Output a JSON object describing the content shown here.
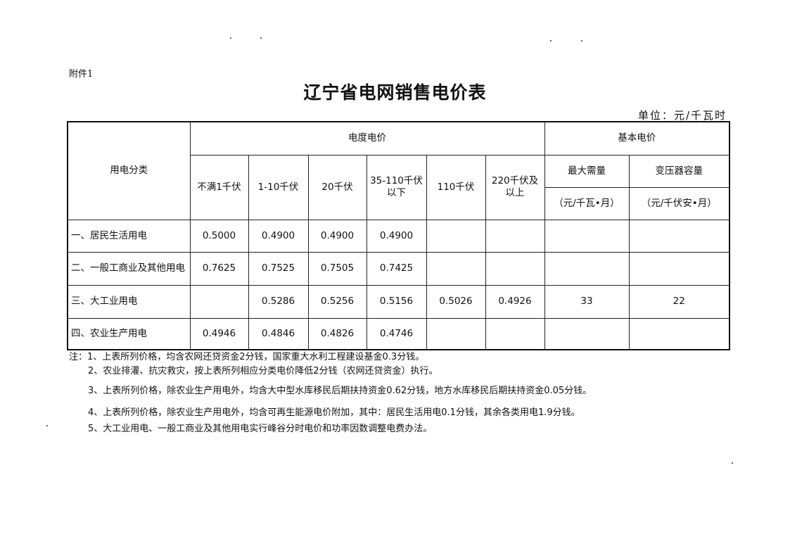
{
  "attachment_label": "附件1",
  "title": "辽宁省电网销售电价表",
  "unit": "单位：元/千瓦时",
  "table": {
    "category_header": "用电分类",
    "energy_price_header": "电度电价",
    "basic_price_header": "基本电价",
    "voltage_columns": [
      "不满1千伏",
      "1-10千伏",
      "20千伏",
      "35-110千伏以下",
      "110千伏",
      "220千伏及以上"
    ],
    "basic_columns": [
      {
        "label": "最大需量",
        "unit": "（元/千瓦•月）"
      },
      {
        "label": "变压器容量",
        "unit": "（元/千伏安•月）"
      }
    ],
    "rows": [
      {
        "category": "一、居民生活用电",
        "values": [
          "0.5000",
          "0.4900",
          "0.4900",
          "0.4900",
          "",
          "",
          "",
          ""
        ]
      },
      {
        "category": "二、一般工商业及其他用电",
        "values": [
          "0.7625",
          "0.7525",
          "0.7505",
          "0.7425",
          "",
          "",
          "",
          ""
        ]
      },
      {
        "category": "三、大工业用电",
        "values": [
          "",
          "0.5286",
          "0.5256",
          "0.5156",
          "0.5026",
          "0.4926",
          "33",
          "22"
        ]
      },
      {
        "category": "四、农业生产用电",
        "values": [
          "0.4946",
          "0.4846",
          "0.4826",
          "0.4746",
          "",
          "",
          "",
          ""
        ]
      }
    ]
  },
  "notes": [
    "注：1、上表所列价格，均含农网还贷资金2分钱，国家重大水利工程建设基金0.3分钱。",
    "2、农业排灌、抗灾救灾，按上表所列相应分类电价降低2分钱（农网还贷资金）执行。",
    "3、上表所列价格，除农业生产用电外，均含大中型水库移民后期扶持资金0.62分钱，地方水库移民后期扶持资金0.05分钱。",
    "4、上表所列价格，除农业生产用电外，均含可再生能源电价附加，其中：居民生活用电0.1分钱，其余各类用电1.9分钱。",
    "5、大工业用电、一般工商业及其他用电实行峰谷分时电价和功率因数调整电费办法。"
  ]
}
